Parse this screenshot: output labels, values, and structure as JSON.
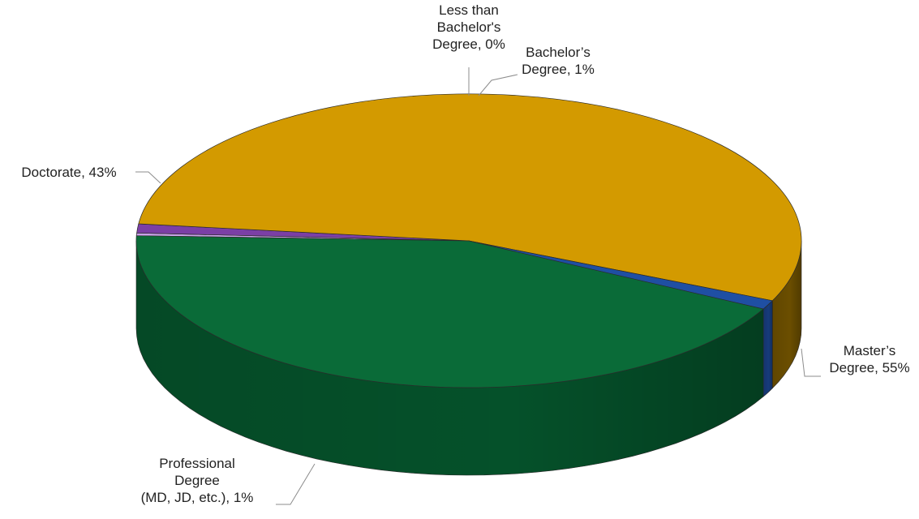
{
  "chart_data": {
    "type": "pie",
    "three_d": true,
    "title": "",
    "legend": "none",
    "slices": [
      {
        "label": "Less than Bachelor's Degree",
        "value": 0,
        "display": "0%",
        "color": "#c8a2e8",
        "label_lines": [
          "Less than",
          "Bachelor's",
          "Degree, 0%"
        ]
      },
      {
        "label": "Bachelor’s Degree",
        "value": 1,
        "display": "1%",
        "color": "#7b3fa6",
        "label_lines": [
          "Bachelor’s",
          "Degree, 1%"
        ]
      },
      {
        "label": "Master’s Degree",
        "value": 55,
        "display": "55%",
        "color": "#d39a00",
        "label_lines": [
          "Master’s",
          "Degree, 55%"
        ]
      },
      {
        "label": "Professional Degree (MD, JD, etc.)",
        "value": 1,
        "display": "1%",
        "color": "#1f4fa3",
        "label_lines": [
          "Professional",
          "Degree",
          "(MD, JD, etc.), 1%"
        ]
      },
      {
        "label": "Doctorate",
        "value": 43,
        "display": "43%",
        "color": "#0a6b38",
        "label_lines": [
          "Doctorate, 43%"
        ]
      }
    ],
    "side_colors": [
      "#a67fc4",
      "#5a2c7c",
      "#6b4e00",
      "#173b7a",
      "#05512a"
    ]
  }
}
